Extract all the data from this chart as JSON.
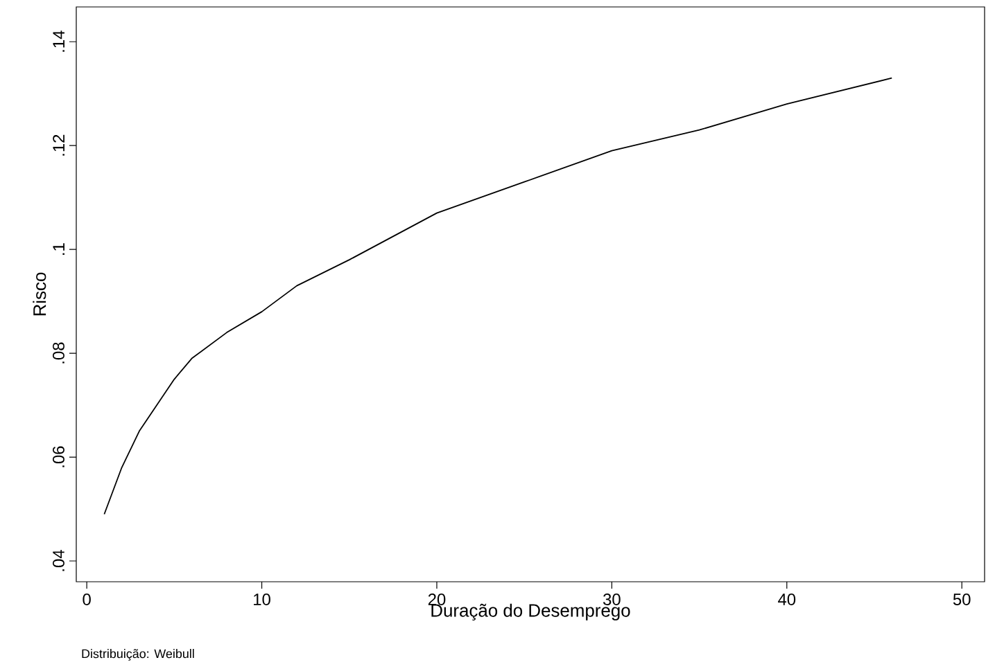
{
  "chart_data": {
    "type": "line",
    "xlabel": "Duração do Desemprego",
    "ylabel": "Risco",
    "annotations": [
      "Distribuição: Weibull"
    ],
    "x": [
      1,
      2,
      3,
      4,
      5,
      6,
      8,
      10,
      12,
      15,
      20,
      25,
      30,
      35,
      40,
      46
    ],
    "series": [
      {
        "color": "#000000",
        "values": [
          0.049,
          0.058,
          0.065,
          0.07,
          0.075,
          0.079,
          0.084,
          0.088,
          0.093,
          0.098,
          0.107,
          0.113,
          0.119,
          0.123,
          0.128,
          0.133
        ]
      }
    ],
    "xlim": [
      -0.6,
      51.3
    ],
    "ylim": [
      0.036,
      0.1467
    ],
    "xticks": [
      0,
      10,
      20,
      30,
      40,
      50
    ],
    "yticks": [
      {
        "value": 0.04,
        "label": ".04"
      },
      {
        "value": 0.06,
        "label": ".06"
      },
      {
        "value": 0.08,
        "label": ".08"
      },
      {
        "value": 0.1,
        "label": ".1"
      },
      {
        "value": 0.12,
        "label": ".12"
      },
      {
        "value": 0.14,
        "label": ".14"
      }
    ],
    "grid": false,
    "marker": "none",
    "line_style": "solid"
  }
}
